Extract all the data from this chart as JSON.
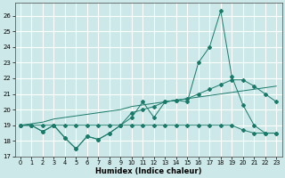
{
  "xlabel": "Humidex (Indice chaleur)",
  "bg_color": "#cce8e8",
  "grid_color": "#ffffff",
  "line_color": "#1a7a6a",
  "xlim": [
    -0.5,
    23.5
  ],
  "ylim": [
    17,
    26.8
  ],
  "yticks": [
    17,
    18,
    19,
    20,
    21,
    22,
    23,
    24,
    25,
    26
  ],
  "xticks": [
    0,
    1,
    2,
    3,
    4,
    5,
    6,
    7,
    8,
    9,
    10,
    11,
    12,
    13,
    14,
    15,
    16,
    17,
    18,
    19,
    20,
    21,
    22,
    23
  ],
  "series_spike": [
    19.0,
    19.0,
    18.6,
    19.0,
    18.2,
    17.5,
    18.3,
    18.1,
    18.5,
    19.0,
    19.5,
    20.5,
    19.5,
    20.5,
    20.6,
    20.5,
    23.0,
    24.0,
    26.3,
    22.1,
    20.3,
    19.0,
    18.5,
    18.5
  ],
  "series_rise": [
    19.0,
    19.0,
    18.6,
    19.0,
    18.2,
    17.5,
    18.3,
    18.1,
    18.5,
    19.0,
    19.8,
    20.0,
    20.2,
    20.5,
    20.6,
    20.7,
    21.0,
    21.3,
    21.6,
    21.9,
    21.9,
    21.5,
    21.0,
    20.5
  ],
  "series_flat": [
    19.0,
    19.0,
    19.0,
    19.0,
    19.0,
    19.0,
    19.0,
    19.0,
    19.0,
    19.0,
    19.0,
    19.0,
    19.0,
    19.0,
    19.0,
    19.0,
    19.0,
    19.0,
    19.0,
    19.0,
    18.7,
    18.5,
    18.5,
    18.5
  ],
  "series_trend": [
    19.0,
    19.1,
    19.2,
    19.4,
    19.5,
    19.6,
    19.7,
    19.8,
    19.9,
    20.0,
    20.2,
    20.3,
    20.4,
    20.5,
    20.6,
    20.7,
    20.8,
    20.9,
    21.0,
    21.1,
    21.2,
    21.3,
    21.4,
    21.5
  ]
}
